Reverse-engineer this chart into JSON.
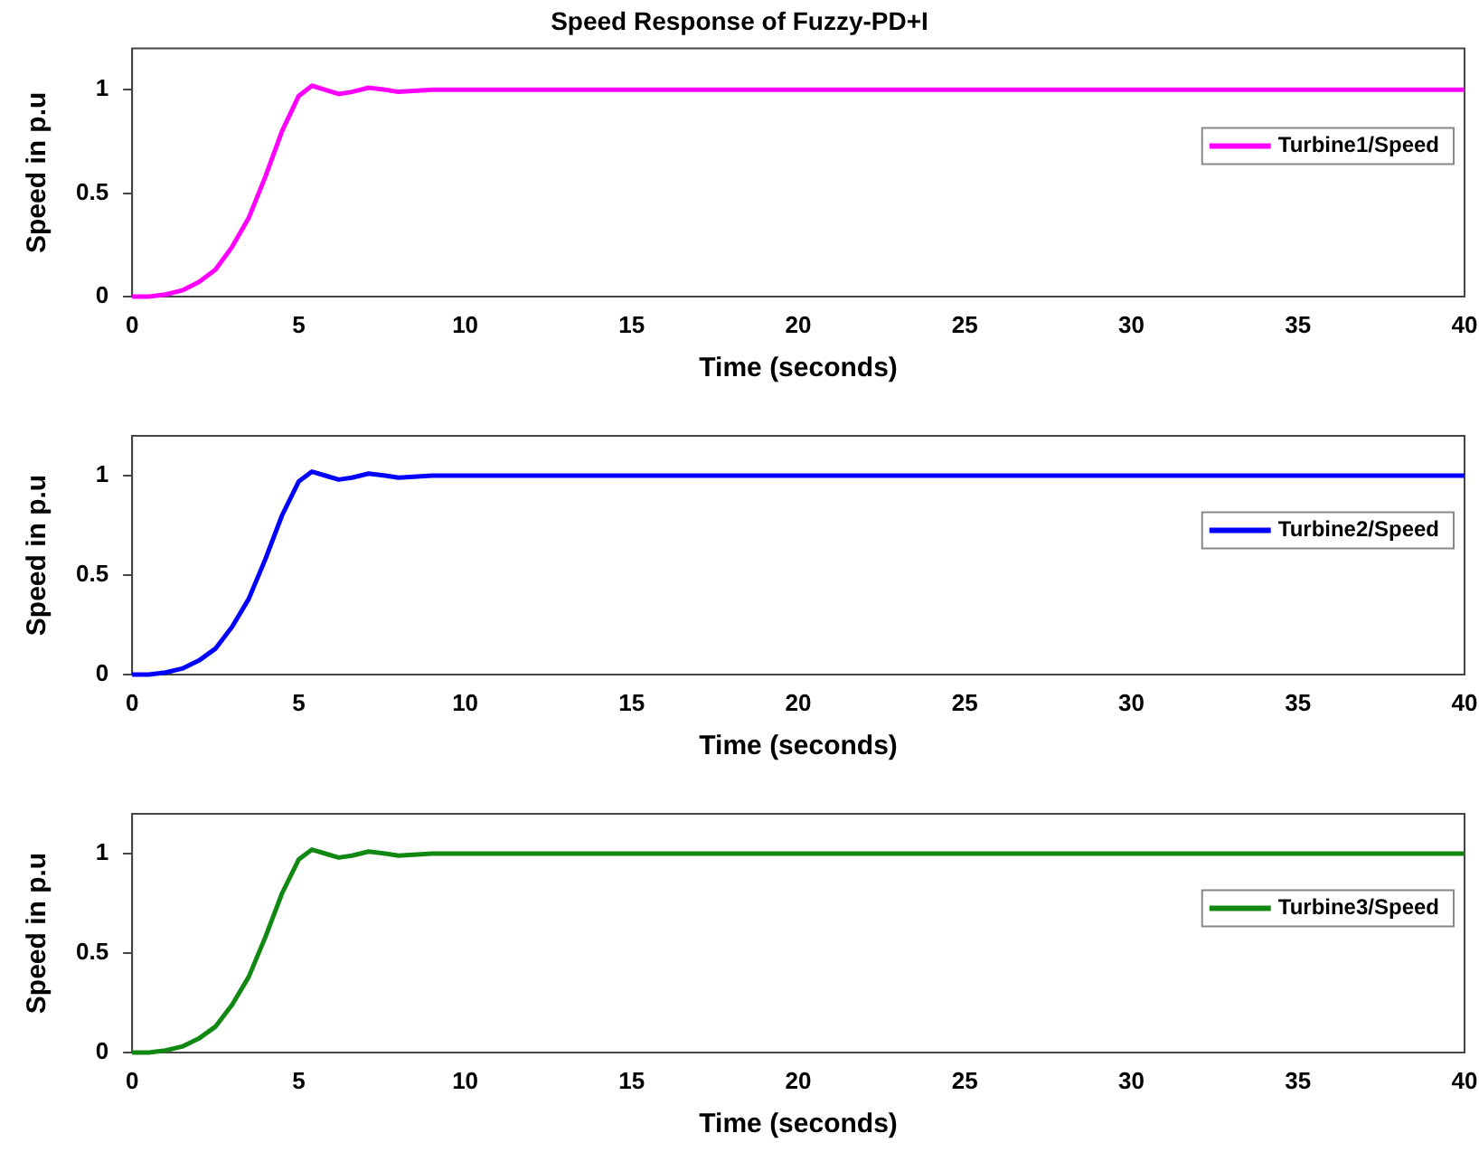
{
  "chart_data": [
    {
      "type": "line",
      "title": "Speed Response of Fuzzy-PD+I",
      "xlabel": "Time (seconds)",
      "ylabel": "Speed in p.u",
      "x": [
        0,
        0.5,
        1,
        1.5,
        2,
        2.5,
        3,
        3.5,
        4,
        4.5,
        5,
        5.4,
        5.8,
        6.2,
        6.6,
        7.1,
        7.6,
        8,
        9,
        10,
        11,
        12,
        40
      ],
      "series": [
        {
          "name": "Turbine1/Speed",
          "color": "#ff00ff",
          "values": [
            0,
            0,
            0.01,
            0.03,
            0.07,
            0.13,
            0.24,
            0.38,
            0.58,
            0.8,
            0.97,
            1.02,
            1,
            0.98,
            0.99,
            1.01,
            1,
            0.99,
            1,
            1,
            1,
            1,
            1
          ]
        }
      ],
      "xlim": [
        0,
        40
      ],
      "xticks": [
        0,
        5,
        10,
        15,
        20,
        25,
        30,
        35,
        40
      ],
      "ylim": [
        0,
        1.2
      ],
      "yticks": [
        0,
        0.5,
        1
      ],
      "legend": "right",
      "grid": false
    },
    {
      "type": "line",
      "xlabel": "Time (seconds)",
      "ylabel": "Speed in p.u",
      "x": [
        0,
        0.5,
        1,
        1.5,
        2,
        2.5,
        3,
        3.5,
        4,
        4.5,
        5,
        5.4,
        5.8,
        6.2,
        6.6,
        7.1,
        7.6,
        8,
        9,
        10,
        11,
        12,
        40
      ],
      "series": [
        {
          "name": "Turbine2/Speed",
          "color": "#0000ff",
          "values": [
            0,
            0,
            0.01,
            0.03,
            0.07,
            0.13,
            0.24,
            0.38,
            0.58,
            0.8,
            0.97,
            1.02,
            1,
            0.98,
            0.99,
            1.01,
            1,
            0.99,
            1,
            1,
            1,
            1,
            1
          ]
        }
      ],
      "xlim": [
        0,
        40
      ],
      "xticks": [
        0,
        5,
        10,
        15,
        20,
        25,
        30,
        35,
        40
      ],
      "ylim": [
        0,
        1.2
      ],
      "yticks": [
        0,
        0.5,
        1
      ],
      "legend": "right",
      "grid": false
    },
    {
      "type": "line",
      "xlabel": "Time (seconds)",
      "ylabel": "Speed in p.u",
      "x": [
        0,
        0.5,
        1,
        1.5,
        2,
        2.5,
        3,
        3.5,
        4,
        4.5,
        5,
        5.4,
        5.8,
        6.2,
        6.6,
        7.1,
        7.6,
        8,
        9,
        10,
        11,
        12,
        40
      ],
      "series": [
        {
          "name": "Turbine3/Speed",
          "color": "#118811",
          "values": [
            0,
            0,
            0.01,
            0.03,
            0.07,
            0.13,
            0.24,
            0.38,
            0.58,
            0.8,
            0.97,
            1.02,
            1,
            0.98,
            0.99,
            1.01,
            1,
            0.99,
            1,
            1,
            1,
            1,
            1
          ]
        }
      ],
      "xlim": [
        0,
        40
      ],
      "xticks": [
        0,
        5,
        10,
        15,
        20,
        25,
        30,
        35,
        40
      ],
      "ylim": [
        0,
        1.2
      ],
      "yticks": [
        0,
        0.5,
        1
      ],
      "legend": "right",
      "grid": false
    }
  ]
}
